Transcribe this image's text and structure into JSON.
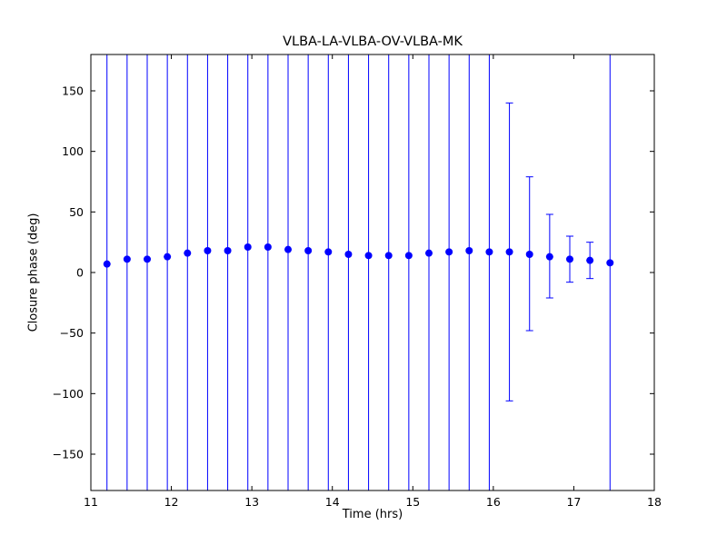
{
  "chart_data": {
    "type": "scatter",
    "title": "VLBA-LA-VLBA-OV-VLBA-MK",
    "xlabel": "Time (hrs)",
    "ylabel": "Closure phase (deg)",
    "xlim": [
      11,
      18
    ],
    "ylim": [
      -180,
      180
    ],
    "xticks": [
      11,
      12,
      13,
      14,
      15,
      16,
      17,
      18
    ],
    "yticks": [
      -150,
      -100,
      -50,
      0,
      50,
      100,
      150
    ],
    "marker_color": "#0000ff",
    "errorbar_color": "#0000ff",
    "grid": false,
    "legend": "none",
    "points": [
      {
        "x": 11.2,
        "y": 7,
        "err_lo": -200,
        "err_hi": 200
      },
      {
        "x": 11.45,
        "y": 11,
        "err_lo": -200,
        "err_hi": 200
      },
      {
        "x": 11.7,
        "y": 11,
        "err_lo": -200,
        "err_hi": 200
      },
      {
        "x": 11.95,
        "y": 13,
        "err_lo": -200,
        "err_hi": 200
      },
      {
        "x": 12.2,
        "y": 16,
        "err_lo": -200,
        "err_hi": 200
      },
      {
        "x": 12.45,
        "y": 18,
        "err_lo": -200,
        "err_hi": 200
      },
      {
        "x": 12.7,
        "y": 18,
        "err_lo": -200,
        "err_hi": 200
      },
      {
        "x": 12.95,
        "y": 21,
        "err_lo": -200,
        "err_hi": 200
      },
      {
        "x": 13.2,
        "y": 21,
        "err_lo": -200,
        "err_hi": 200
      },
      {
        "x": 13.45,
        "y": 19,
        "err_lo": -200,
        "err_hi": 200
      },
      {
        "x": 13.7,
        "y": 18,
        "err_lo": -200,
        "err_hi": 200
      },
      {
        "x": 13.95,
        "y": 17,
        "err_lo": -200,
        "err_hi": 200
      },
      {
        "x": 14.2,
        "y": 15,
        "err_lo": -200,
        "err_hi": 200
      },
      {
        "x": 14.45,
        "y": 14,
        "err_lo": -200,
        "err_hi": 200
      },
      {
        "x": 14.7,
        "y": 14,
        "err_lo": -200,
        "err_hi": 200
      },
      {
        "x": 14.95,
        "y": 14,
        "err_lo": -200,
        "err_hi": 200
      },
      {
        "x": 15.2,
        "y": 16,
        "err_lo": -200,
        "err_hi": 200
      },
      {
        "x": 15.45,
        "y": 17,
        "err_lo": -200,
        "err_hi": 200
      },
      {
        "x": 15.7,
        "y": 18,
        "err_lo": -200,
        "err_hi": 200
      },
      {
        "x": 15.95,
        "y": 17,
        "err_lo": -200,
        "err_hi": 200
      },
      {
        "x": 16.2,
        "y": 17,
        "err_lo": -106,
        "err_hi": 140
      },
      {
        "x": 16.45,
        "y": 15,
        "err_lo": -48,
        "err_hi": 79
      },
      {
        "x": 16.7,
        "y": 13,
        "err_lo": -21,
        "err_hi": 48
      },
      {
        "x": 16.95,
        "y": 11,
        "err_lo": -8,
        "err_hi": 30
      },
      {
        "x": 17.2,
        "y": 10,
        "err_lo": -5,
        "err_hi": 25
      },
      {
        "x": 17.45,
        "y": 8,
        "err_lo": -200,
        "err_hi": 200
      }
    ]
  }
}
